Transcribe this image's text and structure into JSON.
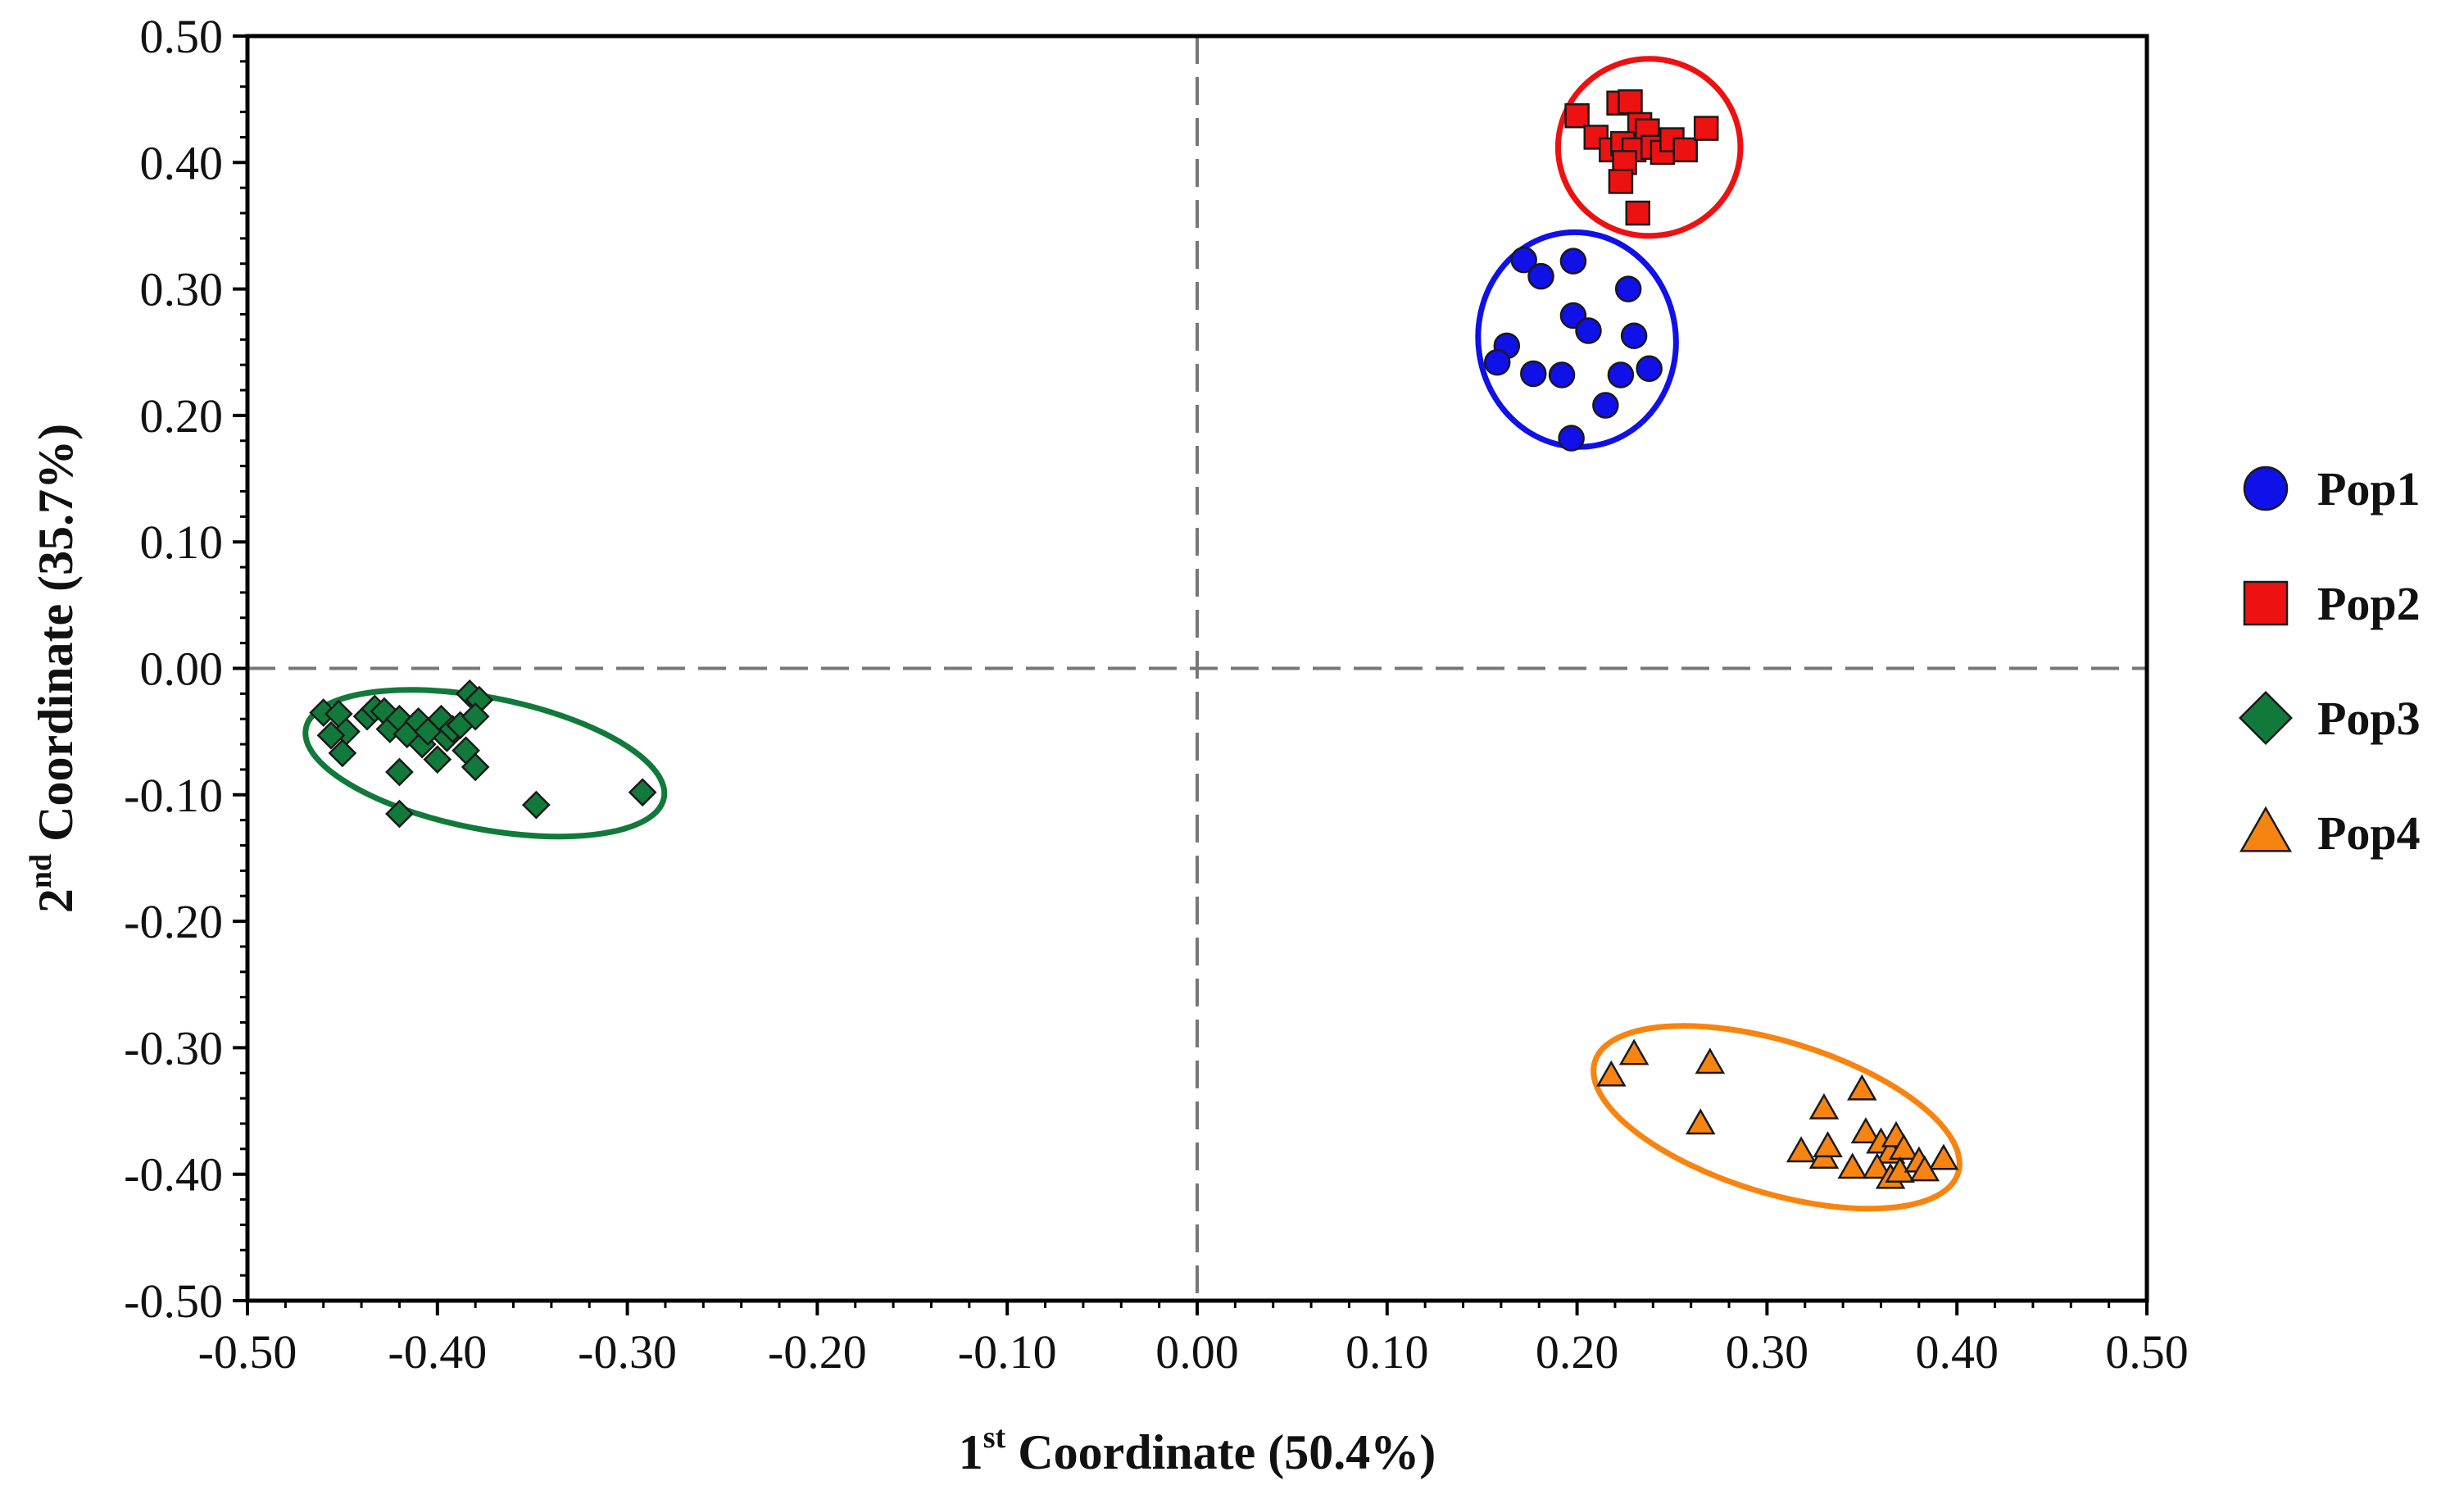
{
  "chart_data": {
    "type": "scatter",
    "title": "",
    "xlabel": {
      "prefix": "1",
      "sup": "st",
      "suffix": " Coordinate (50.4%)"
    },
    "ylabel": {
      "prefix": "2",
      "sup": "nd",
      "suffix": " Coordinate (35.7%)"
    },
    "xlim": [
      -0.5,
      0.5
    ],
    "ylim": [
      -0.5,
      0.5
    ],
    "x_ticks": [
      -0.5,
      -0.4,
      -0.3,
      -0.2,
      -0.1,
      0.0,
      0.1,
      0.2,
      0.3,
      0.4,
      0.5
    ],
    "x_tick_labels": [
      "-0.50",
      "-0.40",
      "-0.30",
      "-0.20",
      "-0.10",
      "0.00",
      "0.10",
      "0.20",
      "0.30",
      "0.40",
      "0.50"
    ],
    "y_ticks": [
      0.5,
      0.4,
      0.3,
      0.2,
      0.1,
      0.0,
      -0.1,
      -0.2,
      -0.3,
      -0.4,
      -0.5
    ],
    "y_tick_labels": [
      "0.50",
      "0.40",
      "0.30",
      "0.20",
      "0.10",
      "0.00",
      "-0.10",
      "-0.20",
      "-0.30",
      "-0.40",
      "-0.50"
    ],
    "reference_lines": {
      "x": 0.0,
      "y": 0.0,
      "style": "dashed"
    },
    "legend_position": "right",
    "series": [
      {
        "name": "Pop1",
        "marker": "circle",
        "color": "#1010e8",
        "ellipse": {
          "cx": 0.2,
          "cy": 0.26,
          "rx": 0.052,
          "ry": 0.085,
          "angle": -8,
          "color": "#1010e8"
        },
        "points": [
          [
            0.172,
            0.323
          ],
          [
            0.181,
            0.31
          ],
          [
            0.198,
            0.322
          ],
          [
            0.227,
            0.3
          ],
          [
            0.198,
            0.279
          ],
          [
            0.206,
            0.267
          ],
          [
            0.23,
            0.263
          ],
          [
            0.163,
            0.255
          ],
          [
            0.158,
            0.242
          ],
          [
            0.177,
            0.233
          ],
          [
            0.192,
            0.232
          ],
          [
            0.223,
            0.232
          ],
          [
            0.238,
            0.237
          ],
          [
            0.215,
            0.208
          ],
          [
            0.197,
            0.182
          ]
        ]
      },
      {
        "name": "Pop2",
        "marker": "square",
        "color": "#ee1111",
        "ellipse": {
          "cx": 0.238,
          "cy": 0.412,
          "rx": 0.048,
          "ry": 0.07,
          "angle": 0,
          "color": "#ee1111"
        },
        "points": [
          [
            0.2,
            0.437
          ],
          [
            0.222,
            0.447
          ],
          [
            0.228,
            0.448
          ],
          [
            0.233,
            0.43
          ],
          [
            0.237,
            0.425
          ],
          [
            0.21,
            0.42
          ],
          [
            0.218,
            0.41
          ],
          [
            0.224,
            0.415
          ],
          [
            0.23,
            0.41
          ],
          [
            0.24,
            0.412
          ],
          [
            0.245,
            0.408
          ],
          [
            0.25,
            0.418
          ],
          [
            0.257,
            0.41
          ],
          [
            0.268,
            0.427
          ],
          [
            0.225,
            0.4
          ],
          [
            0.223,
            0.385
          ],
          [
            0.232,
            0.36
          ]
        ]
      },
      {
        "name": "Pop3",
        "marker": "diamond",
        "color": "#117a3a",
        "ellipse": {
          "cx": -0.375,
          "cy": -0.075,
          "rx": 0.096,
          "ry": 0.052,
          "angle": 11,
          "color": "#117a3a"
        },
        "points": [
          [
            -0.46,
            -0.035
          ],
          [
            -0.452,
            -0.036
          ],
          [
            -0.448,
            -0.05
          ],
          [
            -0.456,
            -0.053
          ],
          [
            -0.45,
            -0.067
          ],
          [
            -0.437,
            -0.038
          ],
          [
            -0.433,
            -0.032
          ],
          [
            -0.428,
            -0.034
          ],
          [
            -0.425,
            -0.048
          ],
          [
            -0.42,
            -0.04
          ],
          [
            -0.416,
            -0.052
          ],
          [
            -0.41,
            -0.042
          ],
          [
            -0.408,
            -0.06
          ],
          [
            -0.405,
            -0.05
          ],
          [
            -0.398,
            -0.04
          ],
          [
            -0.395,
            -0.055
          ],
          [
            -0.392,
            -0.048
          ],
          [
            -0.388,
            -0.045
          ],
          [
            -0.383,
            -0.02
          ],
          [
            -0.378,
            -0.025
          ],
          [
            -0.38,
            -0.038
          ],
          [
            -0.385,
            -0.065
          ],
          [
            -0.38,
            -0.078
          ],
          [
            -0.4,
            -0.072
          ],
          [
            -0.42,
            -0.082
          ],
          [
            -0.42,
            -0.115
          ],
          [
            -0.348,
            -0.108
          ],
          [
            -0.292,
            -0.098
          ]
        ]
      },
      {
        "name": "Pop4",
        "marker": "triangle",
        "color": "#f78411",
        "ellipse": {
          "cx": 0.305,
          "cy": -0.355,
          "rx": 0.1,
          "ry": 0.06,
          "angle": 17,
          "color": "#f78411"
        },
        "points": [
          [
            0.218,
            -0.322
          ],
          [
            0.23,
            -0.305
          ],
          [
            0.27,
            -0.312
          ],
          [
            0.265,
            -0.36
          ],
          [
            0.35,
            -0.333
          ],
          [
            0.33,
            -0.348
          ],
          [
            0.352,
            -0.367
          ],
          [
            0.318,
            -0.382
          ],
          [
            0.33,
            -0.387
          ],
          [
            0.332,
            -0.378
          ],
          [
            0.345,
            -0.395
          ],
          [
            0.36,
            -0.375
          ],
          [
            0.365,
            -0.383
          ],
          [
            0.368,
            -0.37
          ],
          [
            0.372,
            -0.38
          ],
          [
            0.358,
            -0.395
          ],
          [
            0.365,
            -0.403
          ],
          [
            0.37,
            -0.398
          ],
          [
            0.38,
            -0.39
          ],
          [
            0.393,
            -0.388
          ],
          [
            0.383,
            -0.397
          ]
        ]
      }
    ]
  }
}
